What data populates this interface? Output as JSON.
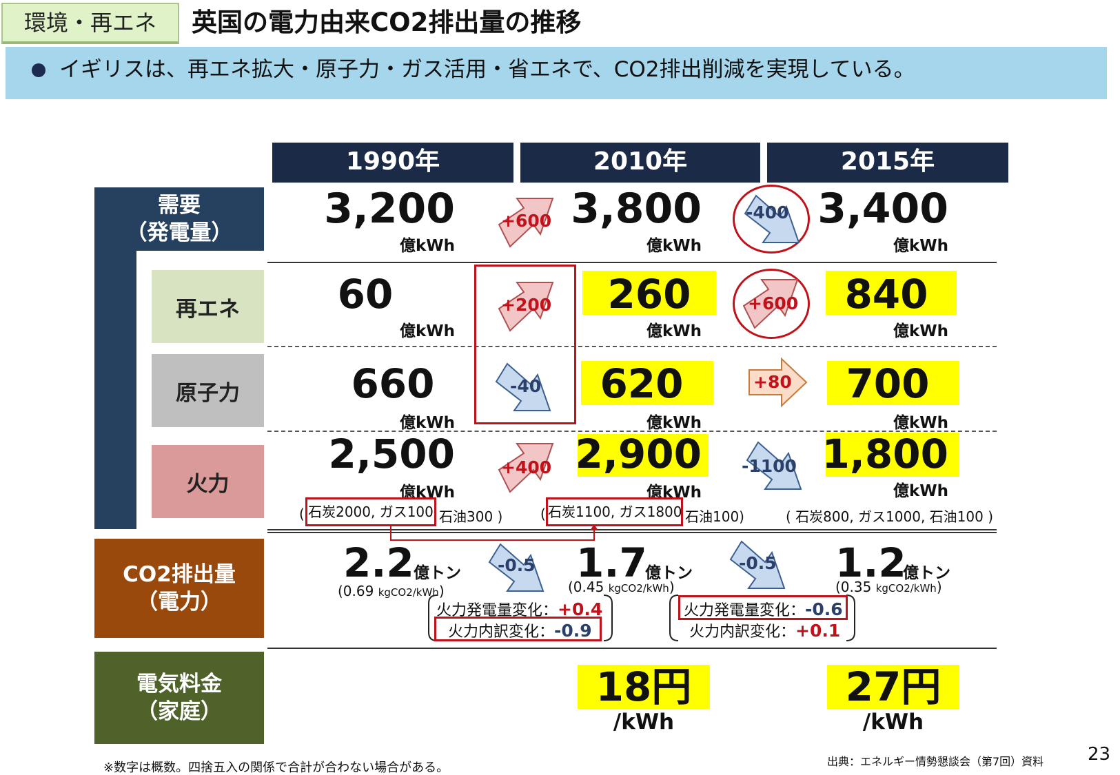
{
  "header": {
    "tag": "環境・再エネ",
    "title": "英国の電力由来CO2排出量の推移",
    "subtitle": "イギリスは、再エネ拡大・原子力・ガス活用・省エネで、CO2排出削減を実現している。"
  },
  "years": [
    "1990年",
    "2010年",
    "2015年"
  ],
  "categories": {
    "demand": "需要\n（発電量）",
    "renewable": "再エネ",
    "nuclear": "原子力",
    "thermal": "火力",
    "co2": "CO2排出量\n（電力）",
    "price": "電気料金\n（家庭）"
  },
  "units": {
    "kwh": "億kWh",
    "ton": "億トン",
    "perkwh": "/kWh"
  },
  "demand": {
    "v1990": "3,200",
    "v2010": "3,800",
    "v2015": "3,400",
    "d1": "+600",
    "d2": "-400"
  },
  "renewable": {
    "v1990": "60",
    "v2010": "260",
    "v2015": "840",
    "d1": "+200",
    "d2": "+600"
  },
  "nuclear": {
    "v1990": "660",
    "v2010": "620",
    "v2015": "700",
    "d1": "-40",
    "d2": "+80"
  },
  "thermal": {
    "v1990": "2,500",
    "v2010": "2,900",
    "v2015": "1,800",
    "d1": "+400",
    "d2": "-1100",
    "b1990": {
      "open": "(",
      "box": "石炭2000, ガス100",
      "rest": "石油300 )"
    },
    "b2010": {
      "open": "(",
      "box": "石炭1100, ガス1800",
      "rest": "石油100)"
    },
    "b2015": "( 石炭800, ガス1000, 石油100 )"
  },
  "co2": {
    "v1990": "2.2",
    "v2010": "1.7",
    "v2015": "1.2",
    "d1": "-0.5",
    "d2": "-0.5",
    "i1990": {
      "val": "(0.69 ",
      "unit": "kgCO2/kWh",
      "close": ")"
    },
    "i2010": {
      "val": "(0.45 ",
      "unit": "kgCO2/kWh",
      "close": ")"
    },
    "i2015": {
      "val": "(0.35 ",
      "unit": "kgCO2/kWh",
      "close": ")"
    },
    "breakdown1": {
      "label1": "火力発電量変化：",
      "val1": "+0.4",
      "label2": "火力内訳変化：",
      "val2": "-0.9"
    },
    "breakdown2": {
      "label1": "火力発電量変化：",
      "val1": "-0.6",
      "label2": "火力内訳変化：",
      "val2": "+0.1"
    }
  },
  "price": {
    "v2010": "18円",
    "v2015": "27円"
  },
  "footer": {
    "note": "※数字は概数。四捨五入の関係で合計が合わない場合がある。",
    "source": "出典：エネルギー情勢懇談会（第7回）資料",
    "page": "23"
  },
  "colors": {
    "navy": "#1b2a46",
    "leftbar": "#26405f",
    "renewable_bg": "#d8e4c1",
    "nuclear_bg": "#bfbfbf",
    "thermal_bg": "#da9a99",
    "co2_bg": "#98490b",
    "price_bg": "#4e6229",
    "highlight": "#ffff00",
    "accent_red": "#c0121a"
  }
}
